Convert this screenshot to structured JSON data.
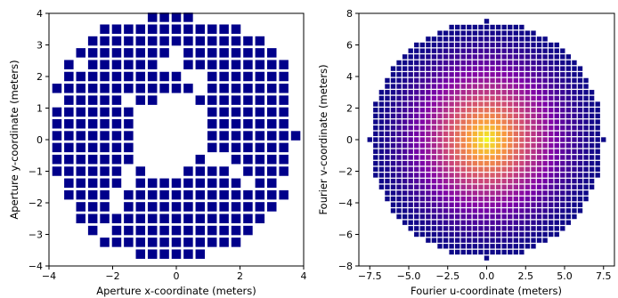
{
  "chart_data": [
    {
      "type": "scatter",
      "marker": "square",
      "color": "#00008b",
      "xlabel": "Aperture x-coordinate (meters)",
      "ylabel": "Aperture y-coordinate (meters)",
      "xlim": [
        -4,
        4
      ],
      "ylim": [
        -4,
        4
      ],
      "xticks": [
        "−4",
        "−2",
        "0",
        "2",
        "4"
      ],
      "yticks": [
        "−4",
        "−3",
        "−2",
        "−1",
        "0",
        "1",
        "2",
        "3",
        "4"
      ],
      "xtick_values": [
        -4,
        -2,
        0,
        2,
        4
      ],
      "ytick_values": [
        -4,
        -3,
        -2,
        -1,
        0,
        1,
        2,
        3,
        4
      ],
      "grid": false,
      "points": [
        [
          -0.75,
          3.875
        ],
        [
          -0.375,
          3.875
        ],
        [
          0.0,
          3.875
        ],
        [
          0.375,
          3.875
        ],
        [
          -2.25,
          3.5
        ],
        [
          -1.875,
          3.5
        ],
        [
          -1.5,
          3.5
        ],
        [
          -1.125,
          3.5
        ],
        [
          -0.75,
          3.5
        ],
        [
          -0.375,
          3.5
        ],
        [
          0.0,
          3.5
        ],
        [
          0.375,
          3.5
        ],
        [
          0.75,
          3.5
        ],
        [
          1.125,
          3.5
        ],
        [
          1.5,
          3.5
        ],
        [
          1.875,
          3.5
        ],
        [
          -2.625,
          3.125
        ],
        [
          -2.25,
          3.125
        ],
        [
          -1.875,
          3.125
        ],
        [
          -1.5,
          3.125
        ],
        [
          -1.125,
          3.125
        ],
        [
          -0.75,
          3.125
        ],
        [
          -0.375,
          3.125
        ],
        [
          0.0,
          3.125
        ],
        [
          0.375,
          3.125
        ],
        [
          0.75,
          3.125
        ],
        [
          1.125,
          3.125
        ],
        [
          1.5,
          3.125
        ],
        [
          1.875,
          3.125
        ],
        [
          2.25,
          3.125
        ],
        [
          2.625,
          3.125
        ],
        [
          -3.0,
          2.75
        ],
        [
          -2.625,
          2.75
        ],
        [
          -2.25,
          2.75
        ],
        [
          -1.875,
          2.75
        ],
        [
          -1.5,
          2.75
        ],
        [
          -1.125,
          2.75
        ],
        [
          -0.75,
          2.75
        ],
        [
          -0.375,
          2.75
        ],
        [
          0.375,
          2.75
        ],
        [
          0.75,
          2.75
        ],
        [
          1.125,
          2.75
        ],
        [
          1.5,
          2.75
        ],
        [
          1.875,
          2.75
        ],
        [
          2.25,
          2.75
        ],
        [
          2.625,
          2.75
        ],
        [
          3.0,
          2.75
        ],
        [
          -3.375,
          2.375
        ],
        [
          -2.625,
          2.375
        ],
        [
          -2.25,
          2.375
        ],
        [
          -1.875,
          2.375
        ],
        [
          -1.5,
          2.375
        ],
        [
          -1.125,
          2.375
        ],
        [
          -0.75,
          2.375
        ],
        [
          0.375,
          2.375
        ],
        [
          0.75,
          2.375
        ],
        [
          1.125,
          2.375
        ],
        [
          1.5,
          2.375
        ],
        [
          1.875,
          2.375
        ],
        [
          2.25,
          2.375
        ],
        [
          2.625,
          2.375
        ],
        [
          3.0,
          2.375
        ],
        [
          3.375,
          2.375
        ],
        [
          -3.375,
          2.0
        ],
        [
          -3.0,
          2.0
        ],
        [
          -2.625,
          2.0
        ],
        [
          -2.25,
          2.0
        ],
        [
          -1.875,
          2.0
        ],
        [
          -1.5,
          2.0
        ],
        [
          -1.125,
          2.0
        ],
        [
          -0.75,
          2.0
        ],
        [
          -0.375,
          2.0
        ],
        [
          0.0,
          2.0
        ],
        [
          1.125,
          2.0
        ],
        [
          1.5,
          2.0
        ],
        [
          1.875,
          2.0
        ],
        [
          2.25,
          2.0
        ],
        [
          2.625,
          2.0
        ],
        [
          3.0,
          2.0
        ],
        [
          3.375,
          2.0
        ],
        [
          -3.75,
          1.625
        ],
        [
          -3.375,
          1.625
        ],
        [
          -3.0,
          1.625
        ],
        [
          -2.625,
          1.625
        ],
        [
          -2.25,
          1.625
        ],
        [
          -1.875,
          1.625
        ],
        [
          -1.5,
          1.625
        ],
        [
          -1.125,
          1.625
        ],
        [
          -0.75,
          1.625
        ],
        [
          -0.375,
          1.625
        ],
        [
          0.0,
          1.625
        ],
        [
          0.375,
          1.625
        ],
        [
          1.125,
          1.625
        ],
        [
          1.5,
          1.625
        ],
        [
          1.875,
          1.625
        ],
        [
          2.25,
          1.625
        ],
        [
          2.625,
          1.625
        ],
        [
          3.0,
          1.625
        ],
        [
          3.375,
          1.625
        ],
        [
          -3.375,
          1.25
        ],
        [
          -3.0,
          1.25
        ],
        [
          -2.625,
          1.25
        ],
        [
          -2.25,
          1.25
        ],
        [
          -1.875,
          1.25
        ],
        [
          -1.125,
          1.25
        ],
        [
          -0.75,
          1.25
        ],
        [
          0.75,
          1.25
        ],
        [
          1.125,
          1.25
        ],
        [
          1.5,
          1.25
        ],
        [
          1.875,
          1.25
        ],
        [
          2.25,
          1.25
        ],
        [
          2.625,
          1.25
        ],
        [
          3.0,
          1.25
        ],
        [
          3.375,
          1.25
        ],
        [
          -3.75,
          0.875
        ],
        [
          -3.375,
          0.875
        ],
        [
          -3.0,
          0.875
        ],
        [
          -2.625,
          0.875
        ],
        [
          -2.25,
          0.875
        ],
        [
          -1.875,
          0.875
        ],
        [
          -1.5,
          0.875
        ],
        [
          1.125,
          0.875
        ],
        [
          1.5,
          0.875
        ],
        [
          1.875,
          0.875
        ],
        [
          2.25,
          0.875
        ],
        [
          2.625,
          0.875
        ],
        [
          3.0,
          0.875
        ],
        [
          3.375,
          0.875
        ],
        [
          -3.75,
          0.5
        ],
        [
          -3.375,
          0.5
        ],
        [
          -3.0,
          0.5
        ],
        [
          -2.625,
          0.5
        ],
        [
          -2.25,
          0.5
        ],
        [
          -1.875,
          0.5
        ],
        [
          -1.5,
          0.5
        ],
        [
          1.125,
          0.5
        ],
        [
          1.5,
          0.5
        ],
        [
          1.875,
          0.5
        ],
        [
          2.25,
          0.5
        ],
        [
          2.625,
          0.5
        ],
        [
          3.0,
          0.5
        ],
        [
          3.375,
          0.5
        ],
        [
          -3.75,
          0.125
        ],
        [
          -3.375,
          0.125
        ],
        [
          -3.0,
          0.125
        ],
        [
          -2.625,
          0.125
        ],
        [
          -2.25,
          0.125
        ],
        [
          -1.875,
          0.125
        ],
        [
          -1.5,
          0.125
        ],
        [
          1.125,
          0.125
        ],
        [
          1.5,
          0.125
        ],
        [
          1.875,
          0.125
        ],
        [
          2.25,
          0.125
        ],
        [
          2.625,
          0.125
        ],
        [
          3.0,
          0.125
        ],
        [
          3.375,
          0.125
        ],
        [
          3.75,
          0.125
        ],
        [
          -3.75,
          -0.25
        ],
        [
          -3.375,
          -0.25
        ],
        [
          -3.0,
          -0.25
        ],
        [
          -2.625,
          -0.25
        ],
        [
          -2.25,
          -0.25
        ],
        [
          -1.875,
          -0.25
        ],
        [
          -1.5,
          -0.25
        ],
        [
          1.125,
          -0.25
        ],
        [
          1.5,
          -0.25
        ],
        [
          1.875,
          -0.25
        ],
        [
          2.25,
          -0.25
        ],
        [
          2.625,
          -0.25
        ],
        [
          3.0,
          -0.25
        ],
        [
          3.375,
          -0.25
        ],
        [
          -3.75,
          -0.625
        ],
        [
          -3.375,
          -0.625
        ],
        [
          -3.0,
          -0.625
        ],
        [
          -2.625,
          -0.625
        ],
        [
          -2.25,
          -0.625
        ],
        [
          -1.875,
          -0.625
        ],
        [
          -1.5,
          -0.625
        ],
        [
          0.75,
          -0.625
        ],
        [
          1.875,
          -0.625
        ],
        [
          2.25,
          -0.625
        ],
        [
          2.625,
          -0.625
        ],
        [
          3.0,
          -0.625
        ],
        [
          3.375,
          -0.625
        ],
        [
          -3.75,
          -1.0
        ],
        [
          -3.375,
          -1.0
        ],
        [
          -3.0,
          -1.0
        ],
        [
          -2.625,
          -1.0
        ],
        [
          -2.25,
          -1.0
        ],
        [
          -1.875,
          -1.0
        ],
        [
          -1.125,
          -1.0
        ],
        [
          0.375,
          -1.0
        ],
        [
          0.75,
          -1.0
        ],
        [
          1.125,
          -1.0
        ],
        [
          1.5,
          -1.0
        ],
        [
          2.25,
          -1.0
        ],
        [
          2.625,
          -1.0
        ],
        [
          3.0,
          -1.0
        ],
        [
          3.375,
          -1.0
        ],
        [
          -3.375,
          -1.375
        ],
        [
          -3.0,
          -1.375
        ],
        [
          -2.625,
          -1.375
        ],
        [
          -2.25,
          -1.375
        ],
        [
          -1.875,
          -1.375
        ],
        [
          -1.125,
          -1.375
        ],
        [
          -0.75,
          -1.375
        ],
        [
          -0.375,
          -1.375
        ],
        [
          0.0,
          -1.375
        ],
        [
          0.375,
          -1.375
        ],
        [
          0.75,
          -1.375
        ],
        [
          1.125,
          -1.375
        ],
        [
          1.5,
          -1.375
        ],
        [
          1.875,
          -1.375
        ],
        [
          2.625,
          -1.375
        ],
        [
          3.0,
          -1.375
        ],
        [
          -3.375,
          -1.75
        ],
        [
          -3.0,
          -1.75
        ],
        [
          -2.625,
          -1.75
        ],
        [
          -2.25,
          -1.75
        ],
        [
          -1.5,
          -1.75
        ],
        [
          -1.125,
          -1.75
        ],
        [
          -0.75,
          -1.75
        ],
        [
          -0.375,
          -1.75
        ],
        [
          0.0,
          -1.75
        ],
        [
          0.375,
          -1.75
        ],
        [
          0.75,
          -1.75
        ],
        [
          1.125,
          -1.75
        ],
        [
          1.5,
          -1.75
        ],
        [
          1.875,
          -1.75
        ],
        [
          2.25,
          -1.75
        ],
        [
          2.625,
          -1.75
        ],
        [
          3.0,
          -1.75
        ],
        [
          3.375,
          -1.75
        ],
        [
          -3.0,
          -2.125
        ],
        [
          -2.625,
          -2.125
        ],
        [
          -2.25,
          -2.125
        ],
        [
          -1.5,
          -2.125
        ],
        [
          -1.125,
          -2.125
        ],
        [
          -0.75,
          -2.125
        ],
        [
          -0.375,
          -2.125
        ],
        [
          0.0,
          -2.125
        ],
        [
          0.375,
          -2.125
        ],
        [
          0.75,
          -2.125
        ],
        [
          1.125,
          -2.125
        ],
        [
          1.5,
          -2.125
        ],
        [
          1.875,
          -2.125
        ],
        [
          2.25,
          -2.125
        ],
        [
          2.625,
          -2.125
        ],
        [
          3.0,
          -2.125
        ],
        [
          -3.0,
          -2.5
        ],
        [
          -2.625,
          -2.5
        ],
        [
          -2.25,
          -2.5
        ],
        [
          -1.875,
          -2.5
        ],
        [
          -1.5,
          -2.5
        ],
        [
          -1.125,
          -2.5
        ],
        [
          -0.75,
          -2.5
        ],
        [
          -0.375,
          -2.5
        ],
        [
          0.0,
          -2.5
        ],
        [
          0.375,
          -2.5
        ],
        [
          0.75,
          -2.5
        ],
        [
          1.125,
          -2.5
        ],
        [
          1.5,
          -2.5
        ],
        [
          1.875,
          -2.5
        ],
        [
          2.25,
          -2.5
        ],
        [
          2.625,
          -2.5
        ],
        [
          -2.625,
          -2.875
        ],
        [
          -1.875,
          -2.875
        ],
        [
          -1.5,
          -2.875
        ],
        [
          -1.125,
          -2.875
        ],
        [
          -0.75,
          -2.875
        ],
        [
          -0.375,
          -2.875
        ],
        [
          0.0,
          -2.875
        ],
        [
          0.375,
          -2.875
        ],
        [
          0.75,
          -2.875
        ],
        [
          1.125,
          -2.875
        ],
        [
          1.5,
          -2.875
        ],
        [
          1.875,
          -2.875
        ],
        [
          2.25,
          -2.875
        ],
        [
          -2.25,
          -3.25
        ],
        [
          -1.875,
          -3.25
        ],
        [
          -1.5,
          -3.25
        ],
        [
          -1.125,
          -3.25
        ],
        [
          -0.75,
          -3.25
        ],
        [
          -0.375,
          -3.25
        ],
        [
          0.0,
          -3.25
        ],
        [
          0.375,
          -3.25
        ],
        [
          0.75,
          -3.25
        ],
        [
          1.125,
          -3.25
        ],
        [
          1.5,
          -3.25
        ],
        [
          1.875,
          -3.25
        ],
        [
          -1.125,
          -3.625
        ],
        [
          -0.75,
          -3.625
        ],
        [
          -0.375,
          -3.625
        ],
        [
          0.0,
          -3.625
        ],
        [
          0.375,
          -3.625
        ],
        [
          0.75,
          -3.625
        ]
      ]
    },
    {
      "type": "heatmap",
      "marker": "square",
      "colormap": "plasma",
      "xlabel": "Fourier u-coordinate (meters)",
      "ylabel": "Fourier v-coordinate (meters)",
      "xlim": [
        -8.2,
        8.2
      ],
      "ylim": [
        -8,
        8
      ],
      "xticks": [
        "−7.5",
        "−5.0",
        "−2.5",
        "0.0",
        "2.5",
        "5.0",
        "7.5"
      ],
      "yticks": [
        "−8",
        "−6",
        "−4",
        "−2",
        "0",
        "2",
        "4",
        "6",
        "8"
      ],
      "xtick_values": [
        -7.5,
        -5.0,
        -2.5,
        0.0,
        2.5,
        5.0,
        7.5
      ],
      "ytick_values": [
        -8,
        -6,
        -4,
        -2,
        0,
        2,
        4,
        6,
        8
      ],
      "grid": false,
      "grid_spacing": 0.375,
      "support_radius": 7.5,
      "peak_at": [
        0,
        0
      ],
      "description_of_values": "uv coverage density, maximum (yellow) at origin, decreasing (purple to dark blue) toward the edge"
    }
  ]
}
